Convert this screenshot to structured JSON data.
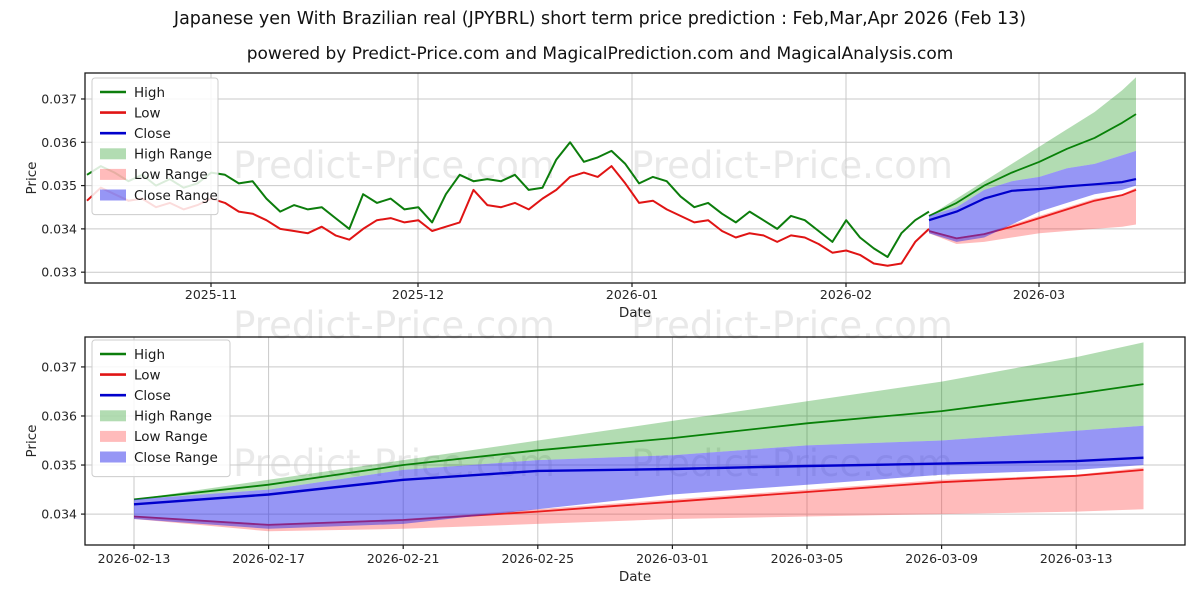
{
  "title": "Japanese yen With Brazilian real (JPYBRL) short term price prediction : Feb,Mar,Apr 2026 (Feb 13)",
  "subtitle": "powered by Predict-Price.com and MagicalPrediction.com and MagicalAnalysis.com",
  "watermark": {
    "text": "Predict-Price.com",
    "color": "#888888",
    "opacity": 0.18
  },
  "axes": {
    "price_label": "Price",
    "date_label": "Date"
  },
  "colors": {
    "high_line": "#0c7d0c",
    "low_line": "#e01414",
    "close_line": "#0000cc",
    "high_fill": "rgba(0,140,0,0.30)",
    "low_fill": "rgba(255,50,50,0.33)",
    "close_fill": "rgba(45,45,235,0.50)",
    "grid": "#c9c9c9",
    "spine": "#1a1a1a",
    "tick_text": "#262626",
    "legend_border": "#cccccc"
  },
  "legend": {
    "items": [
      {
        "label": "High",
        "type": "line",
        "color_key": "high_line"
      },
      {
        "label": "Low",
        "type": "line",
        "color_key": "low_line"
      },
      {
        "label": "Close",
        "type": "line",
        "color_key": "close_line"
      },
      {
        "label": "High Range",
        "type": "fill",
        "color_key": "high_fill"
      },
      {
        "label": "Low Range",
        "type": "fill",
        "color_key": "low_fill"
      },
      {
        "label": "Close Range",
        "type": "fill",
        "color_key": "close_fill"
      }
    ]
  },
  "chart_data": [
    {
      "type": "line",
      "name": "price-history-with-forecast",
      "title": "Japanese yen With Brazilian real (JPYBRL) short term price prediction : Feb,Mar,Apr 2026 (Feb 13)",
      "xlabel": "Date",
      "ylabel": "Price",
      "yticks": [
        0.033,
        0.034,
        0.035,
        0.036,
        0.037
      ],
      "xticks": [
        "2025-11",
        "2025-12",
        "2026-01",
        "2026-02",
        "2026-03"
      ],
      "ylim": [
        0.03275,
        0.0376
      ],
      "grid": true,
      "legend_position": "upper-left",
      "history": {
        "start_date": "2025-10-14",
        "interval_days": 2,
        "series": [
          {
            "name": "High",
            "values": [
              0.03525,
              0.03545,
              0.0353,
              0.0351,
              0.03525,
              0.035,
              0.03515,
              0.03495,
              0.03505,
              0.0353,
              0.03525,
              0.03505,
              0.0351,
              0.0347,
              0.0344,
              0.03455,
              0.03445,
              0.0345,
              0.03425,
              0.034,
              0.0348,
              0.0346,
              0.0347,
              0.03445,
              0.0345,
              0.03415,
              0.0348,
              0.03525,
              0.0351,
              0.03515,
              0.0351,
              0.03525,
              0.0349,
              0.03495,
              0.0356,
              0.036,
              0.03555,
              0.03565,
              0.0358,
              0.0355,
              0.03505,
              0.0352,
              0.0351,
              0.03475,
              0.0345,
              0.0346,
              0.03435,
              0.03415,
              0.0344,
              0.0342,
              0.034,
              0.0343,
              0.0342,
              0.03395,
              0.0337,
              0.0342,
              0.0338,
              0.03355,
              0.03335,
              0.0339,
              0.0342,
              0.0344
            ]
          },
          {
            "name": "Low",
            "values": [
              0.03465,
              0.03495,
              0.0348,
              0.03465,
              0.0347,
              0.0345,
              0.0346,
              0.03445,
              0.03455,
              0.0347,
              0.0346,
              0.0344,
              0.03435,
              0.0342,
              0.034,
              0.03395,
              0.0339,
              0.03405,
              0.03385,
              0.03375,
              0.034,
              0.0342,
              0.03425,
              0.03415,
              0.0342,
              0.03395,
              0.03405,
              0.03415,
              0.0349,
              0.03455,
              0.0345,
              0.0346,
              0.03445,
              0.0347,
              0.0349,
              0.0352,
              0.0353,
              0.0352,
              0.03545,
              0.03505,
              0.0346,
              0.03465,
              0.03445,
              0.0343,
              0.03415,
              0.0342,
              0.03395,
              0.0338,
              0.0339,
              0.03385,
              0.0337,
              0.03385,
              0.0338,
              0.03365,
              0.03345,
              0.0335,
              0.0334,
              0.0332,
              0.03315,
              0.0332,
              0.0337,
              0.034
            ]
          }
        ]
      },
      "forecast": {
        "dates": [
          "2026-02-13",
          "2026-02-17",
          "2026-02-21",
          "2026-02-25",
          "2026-03-01",
          "2026-03-05",
          "2026-03-09",
          "2026-03-13",
          "2026-03-15"
        ],
        "day_offsets": [
          0,
          4,
          8,
          12,
          16,
          20,
          24,
          28,
          30
        ],
        "close": [
          0.0342,
          0.0344,
          0.0347,
          0.03488,
          0.03492,
          0.03498,
          0.03503,
          0.03508,
          0.03515
        ],
        "high": [
          0.0343,
          0.0346,
          0.035,
          0.0353,
          0.03555,
          0.03585,
          0.0361,
          0.03645,
          0.03665
        ],
        "low": [
          0.03395,
          0.03378,
          0.03388,
          0.03405,
          0.03425,
          0.03445,
          0.03465,
          0.03478,
          0.0349
        ],
        "high_range": {
          "upper": [
            0.0343,
            0.0347,
            0.0351,
            0.0355,
            0.0359,
            0.0363,
            0.0367,
            0.0372,
            0.0375
          ],
          "lower": [
            0.0343,
            0.0345,
            0.0349,
            0.0351,
            0.0352,
            0.0354,
            0.0355,
            0.0357,
            0.0358
          ]
        },
        "close_range": {
          "upper": [
            0.0343,
            0.0345,
            0.0349,
            0.0351,
            0.0352,
            0.0354,
            0.0355,
            0.0357,
            0.0358
          ],
          "lower": [
            0.0339,
            0.0337,
            0.0338,
            0.0341,
            0.0344,
            0.0346,
            0.0348,
            0.0349,
            0.035
          ]
        },
        "low_range": {
          "upper": [
            0.03395,
            0.0338,
            0.0339,
            0.0341,
            0.0343,
            0.0345,
            0.0347,
            0.0348,
            0.03495
          ],
          "lower": [
            0.0339,
            0.03365,
            0.0337,
            0.0338,
            0.0339,
            0.03395,
            0.034,
            0.03405,
            0.0341
          ]
        }
      }
    },
    {
      "type": "area",
      "name": "forecast-zoom",
      "title": "",
      "xlabel": "Date",
      "ylabel": "Price",
      "yticks": [
        0.034,
        0.035,
        0.036,
        0.037
      ],
      "xticks": [
        "2026-02-13",
        "2026-02-17",
        "2026-02-21",
        "2026-02-25",
        "2026-03-01",
        "2026-03-05",
        "2026-03-09",
        "2026-03-13"
      ],
      "ylim": [
        0.03337,
        0.03761
      ],
      "grid": true,
      "legend_position": "upper-left",
      "forecast": {
        "dates": [
          "2026-02-13",
          "2026-02-17",
          "2026-02-21",
          "2026-02-25",
          "2026-03-01",
          "2026-03-05",
          "2026-03-09",
          "2026-03-13",
          "2026-03-15"
        ],
        "day_offsets": [
          0,
          4,
          8,
          12,
          16,
          20,
          24,
          28,
          30
        ],
        "close": [
          0.0342,
          0.0344,
          0.0347,
          0.03488,
          0.03492,
          0.03498,
          0.03503,
          0.03508,
          0.03515
        ],
        "high": [
          0.0343,
          0.0346,
          0.035,
          0.0353,
          0.03555,
          0.03585,
          0.0361,
          0.03645,
          0.03665
        ],
        "low": [
          0.03395,
          0.03378,
          0.03388,
          0.03405,
          0.03425,
          0.03445,
          0.03465,
          0.03478,
          0.0349
        ],
        "high_range": {
          "upper": [
            0.0343,
            0.0347,
            0.0351,
            0.0355,
            0.0359,
            0.0363,
            0.0367,
            0.0372,
            0.0375
          ],
          "lower": [
            0.0343,
            0.0345,
            0.0349,
            0.0351,
            0.0352,
            0.0354,
            0.0355,
            0.0357,
            0.0358
          ]
        },
        "close_range": {
          "upper": [
            0.0343,
            0.0345,
            0.0349,
            0.0351,
            0.0352,
            0.0354,
            0.0355,
            0.0357,
            0.0358
          ],
          "lower": [
            0.0339,
            0.0337,
            0.0338,
            0.0341,
            0.0344,
            0.0346,
            0.0348,
            0.0349,
            0.035
          ]
        },
        "low_range": {
          "upper": [
            0.03395,
            0.0338,
            0.0339,
            0.0341,
            0.0343,
            0.0345,
            0.0347,
            0.0348,
            0.03495
          ],
          "lower": [
            0.0339,
            0.03365,
            0.0337,
            0.0338,
            0.0339,
            0.03395,
            0.034,
            0.03405,
            0.0341
          ]
        }
      }
    }
  ]
}
